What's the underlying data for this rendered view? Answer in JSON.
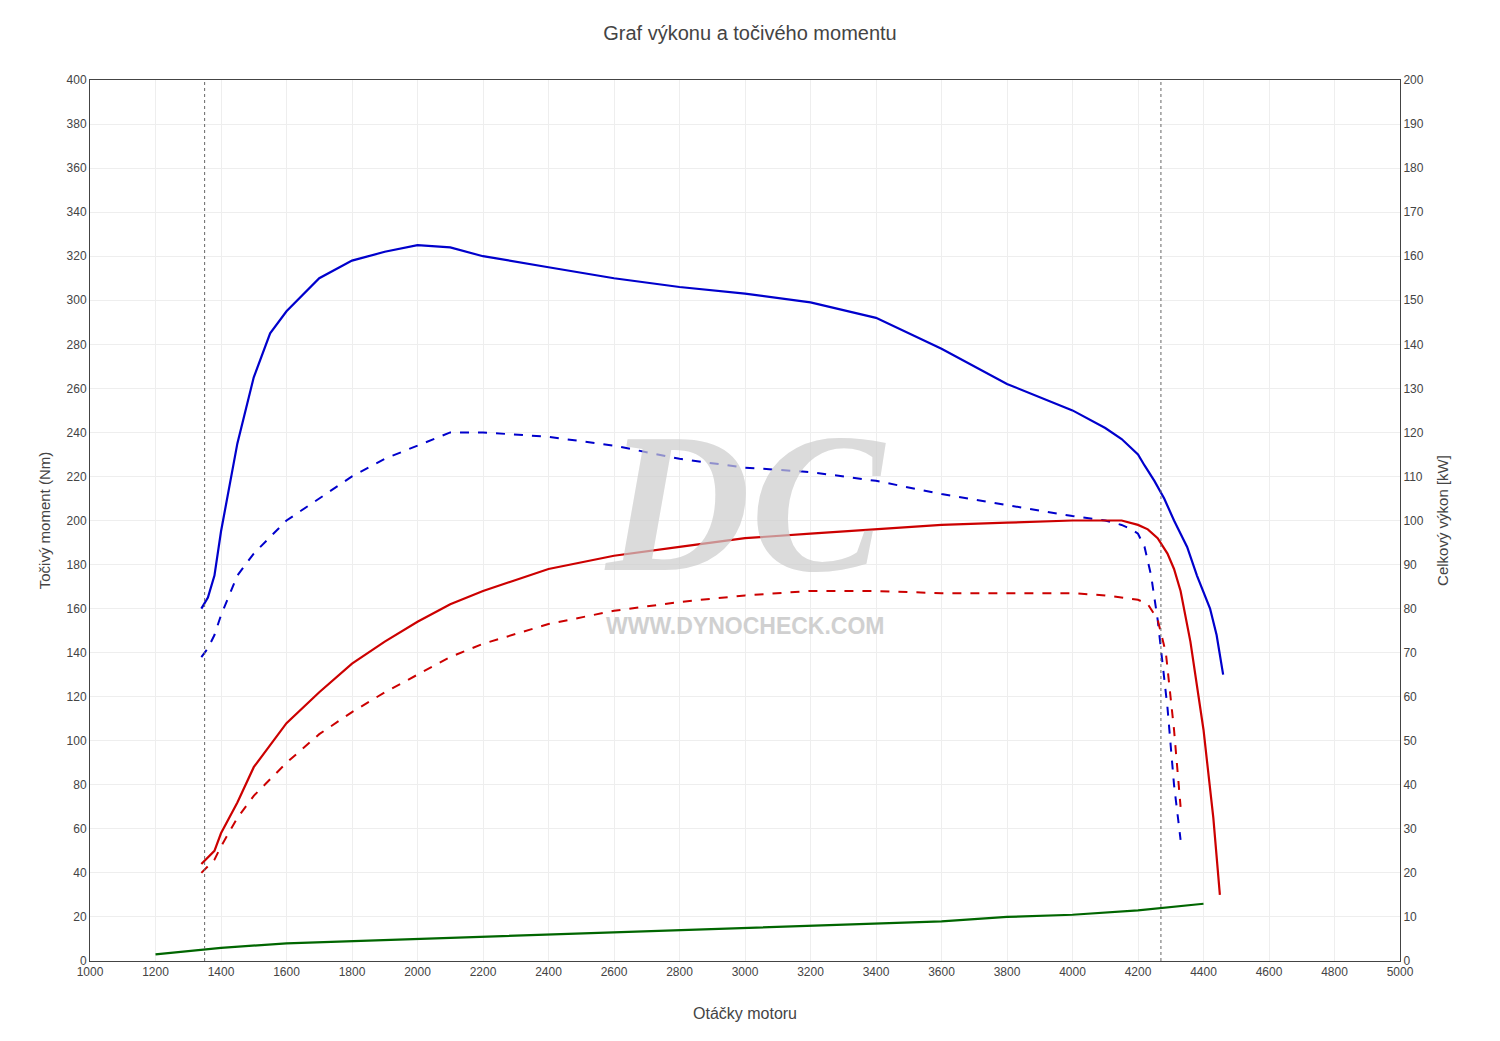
{
  "chart_data": {
    "type": "line",
    "title": "Graf výkonu a točivého momentu",
    "xlabel": "Otáčky motoru",
    "ylabel": "Točivý moment (Nm)",
    "y2label": "Celkový výkon [kW]",
    "xlim": [
      1000,
      5000
    ],
    "ylim": [
      0,
      400
    ],
    "y2lim": [
      0,
      200
    ],
    "xticks": [
      1000,
      1200,
      1400,
      1600,
      1800,
      2000,
      2200,
      2400,
      2600,
      2800,
      3000,
      3200,
      3400,
      3600,
      3800,
      4000,
      4200,
      4400,
      4600,
      4800,
      5000
    ],
    "yticks": [
      0,
      20,
      40,
      60,
      80,
      100,
      120,
      140,
      160,
      180,
      200,
      220,
      240,
      260,
      280,
      300,
      320,
      340,
      360,
      380,
      400
    ],
    "y2ticks": [
      0,
      10,
      20,
      30,
      40,
      50,
      60,
      70,
      80,
      90,
      100,
      110,
      120,
      130,
      140,
      150,
      160,
      170,
      180,
      190,
      200
    ],
    "grid": true,
    "series": [
      {
        "color": "#0000cc",
        "line_style": "solid",
        "x": [
          1340,
          1360,
          1380,
          1400,
          1450,
          1500,
          1550,
          1600,
          1700,
          1800,
          1900,
          2000,
          2100,
          2200,
          2400,
          2600,
          2800,
          3000,
          3200,
          3400,
          3600,
          3800,
          4000,
          4100,
          4150,
          4200,
          4220,
          4250,
          4280,
          4310,
          4350,
          4380,
          4420,
          4440,
          4460
        ],
        "values": [
          160,
          165,
          175,
          195,
          235,
          265,
          285,
          295,
          310,
          318,
          322,
          325,
          324,
          320,
          315,
          310,
          306,
          303,
          299,
          292,
          278,
          262,
          250,
          242,
          237,
          230,
          225,
          218,
          210,
          200,
          188,
          175,
          160,
          148,
          130
        ]
      },
      {
        "color": "#0000cc",
        "line_style": "dashed",
        "x": [
          1340,
          1360,
          1380,
          1400,
          1450,
          1500,
          1600,
          1700,
          1800,
          1900,
          2000,
          2100,
          2200,
          2400,
          2600,
          2800,
          3000,
          3200,
          3400,
          3600,
          3800,
          4000,
          4100,
          4150,
          4180,
          4200,
          4220,
          4240,
          4260,
          4290,
          4310,
          4330
        ],
        "values": [
          138,
          142,
          148,
          157,
          175,
          185,
          200,
          210,
          220,
          228,
          234,
          240,
          240,
          238,
          234,
          228,
          224,
          222,
          218,
          212,
          207,
          202,
          200,
          198,
          196,
          194,
          188,
          175,
          155,
          115,
          80,
          55
        ]
      },
      {
        "color": "#cc0000",
        "line_style": "solid",
        "x": [
          1340,
          1360,
          1380,
          1400,
          1450,
          1500,
          1600,
          1700,
          1800,
          1900,
          2000,
          2100,
          2200,
          2400,
          2600,
          2800,
          3000,
          3200,
          3400,
          3600,
          3800,
          4000,
          4100,
          4150,
          4200,
          4230,
          4260,
          4290,
          4310,
          4330,
          4360,
          4400,
          4430,
          4450
        ],
        "values": [
          44,
          47,
          50,
          58,
          72,
          88,
          108,
          122,
          135,
          145,
          154,
          162,
          168,
          178,
          184,
          188,
          192,
          194,
          196,
          198,
          199,
          200,
          200,
          200,
          198,
          196,
          192,
          185,
          178,
          168,
          145,
          105,
          65,
          30
        ]
      },
      {
        "color": "#cc0000",
        "line_style": "dashed",
        "x": [
          1340,
          1360,
          1380,
          1400,
          1450,
          1500,
          1600,
          1700,
          1800,
          1900,
          2000,
          2100,
          2200,
          2400,
          2600,
          2800,
          3000,
          3200,
          3400,
          3600,
          3800,
          4000,
          4100,
          4150,
          4200,
          4230,
          4260,
          4285,
          4310,
          4330
        ],
        "values": [
          40,
          43,
          46,
          52,
          65,
          75,
          90,
          103,
          113,
          122,
          130,
          138,
          144,
          153,
          159,
          163,
          166,
          168,
          168,
          167,
          167,
          167,
          166,
          165,
          164,
          162,
          155,
          140,
          105,
          70
        ]
      },
      {
        "color": "#006600",
        "line_style": "solid",
        "x": [
          1200,
          1400,
          1600,
          1800,
          2000,
          2200,
          2400,
          2600,
          2800,
          3000,
          3200,
          3400,
          3600,
          3800,
          4000,
          4200,
          4400
        ],
        "values": [
          3,
          6,
          8,
          9,
          10,
          11,
          12,
          13,
          14,
          15,
          16,
          17,
          18,
          20,
          21,
          23,
          26
        ]
      }
    ],
    "vlines": [
      1350,
      4270
    ],
    "annotations": [
      "DC",
      "WWW.DYNOCHECK.COM"
    ]
  }
}
